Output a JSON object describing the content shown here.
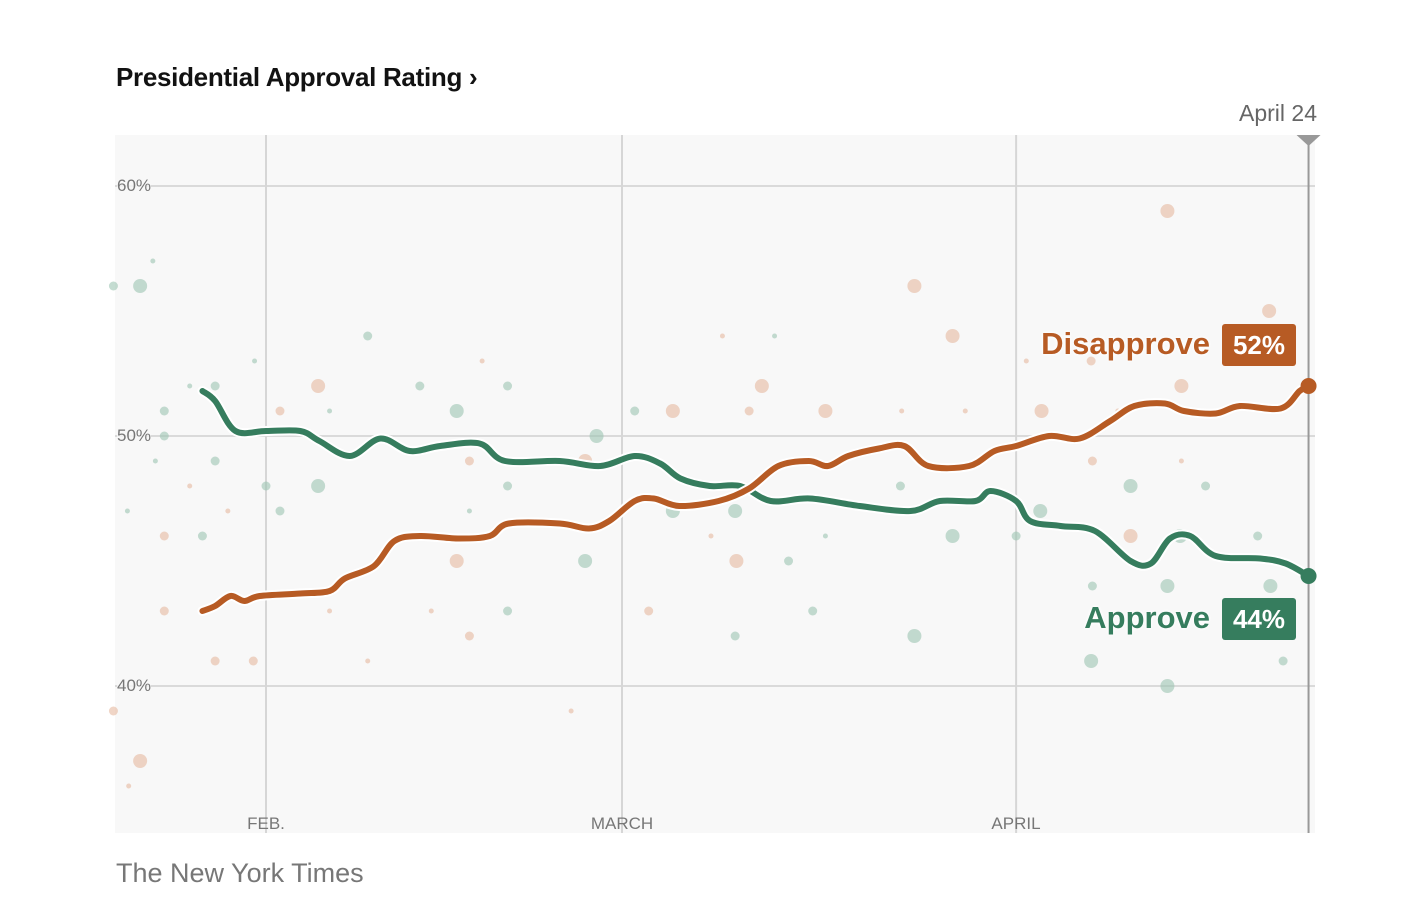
{
  "header": {
    "title": "Presidential Approval Rating ›",
    "current_date": "April 24"
  },
  "source": "The New York Times",
  "colors": {
    "approve": "#367d5e",
    "disapprove": "#b75b24",
    "approve_dot": "#9cc5b3",
    "disapprove_dot": "#e6b9a0",
    "background": "#f8f8f8"
  },
  "chart_data": {
    "type": "line",
    "title": "Presidential Approval Rating",
    "x_unit": "day of year",
    "xlim": [
      20,
      114.6
    ],
    "ylim": [
      35.9,
      63.9
    ],
    "yticks": [
      {
        "value": 60,
        "label": "60%"
      },
      {
        "value": 50,
        "label": "50%"
      },
      {
        "value": 40,
        "label": "40%"
      }
    ],
    "xticks": [
      {
        "value": 32,
        "label": "FEB."
      },
      {
        "value": 60,
        "label": "MARCH"
      },
      {
        "value": 91,
        "label": "APRIL"
      }
    ],
    "grid": true,
    "current_marker": {
      "x": 114,
      "label": "April 24"
    },
    "series": [
      {
        "name": "Approve",
        "final_label": "44%",
        "x": [
          27,
          28,
          29.6,
          32,
          34.7,
          36.2,
          38.6,
          41,
          43.3,
          45.7,
          48.8,
          50.8,
          55.1,
          58.3,
          61,
          63,
          64.6,
          66.9,
          69.3,
          71.7,
          74.8,
          78.7,
          82.7,
          85,
          87.8,
          89,
          91,
          92.1,
          94.5,
          97.2,
          100,
          101.6,
          103.1,
          104.7,
          106.7,
          110.2,
          112.2,
          114
        ],
        "y": [
          51.8,
          51.4,
          50.2,
          50.2,
          50.2,
          49.8,
          49.2,
          49.9,
          49.4,
          49.6,
          49.7,
          49.0,
          49.0,
          48.8,
          49.2,
          48.9,
          48.3,
          48.0,
          48.0,
          47.4,
          47.5,
          47.2,
          47.0,
          47.4,
          47.4,
          47.8,
          47.4,
          46.6,
          46.4,
          46.2,
          45.0,
          44.9,
          45.9,
          46.0,
          45.2,
          45.1,
          44.9,
          44.4
        ]
      },
      {
        "name": "Disapprove",
        "final_label": "52%",
        "x": [
          27,
          28,
          29.2,
          30.3,
          31.5,
          34.7,
          37,
          38.2,
          40.5,
          42.1,
          44.1,
          47.2,
          49.6,
          51.1,
          55.1,
          57.4,
          59,
          61,
          62.5,
          64.5,
          67.6,
          70,
          72.3,
          74.7,
          76.2,
          77.8,
          80.2,
          82.2,
          84.1,
          87.3,
          89.3,
          91,
          93.6,
          96,
          98.4,
          100.3,
          102.7,
          104.2,
          106.7,
          108.6,
          111.8,
          113.3,
          114
        ],
        "y": [
          43.0,
          43.2,
          43.6,
          43.4,
          43.6,
          43.7,
          43.8,
          44.3,
          44.8,
          45.8,
          46.0,
          45.9,
          46.0,
          46.5,
          46.5,
          46.3,
          46.6,
          47.4,
          47.5,
          47.2,
          47.4,
          47.9,
          48.8,
          49.0,
          48.8,
          49.2,
          49.5,
          49.6,
          48.8,
          48.8,
          49.4,
          49.6,
          50.0,
          49.9,
          50.6,
          51.2,
          51.3,
          51.0,
          50.9,
          51.2,
          51.1,
          51.8,
          52.0
        ]
      }
    ],
    "polls": {
      "approve": [
        [
          20,
          56,
          2
        ],
        [
          22.1,
          56,
          3
        ],
        [
          23.1,
          57,
          1
        ],
        [
          24,
          51,
          2
        ],
        [
          24,
          50,
          2
        ],
        [
          23.3,
          49,
          1
        ],
        [
          21.1,
          47,
          1
        ],
        [
          26,
          52,
          1
        ],
        [
          28,
          52,
          2
        ],
        [
          28,
          49,
          2
        ],
        [
          27,
          46,
          2
        ],
        [
          31.1,
          53,
          1
        ],
        [
          32,
          48,
          2
        ],
        [
          33.1,
          47,
          2
        ],
        [
          36.1,
          48,
          3
        ],
        [
          37,
          51,
          1
        ],
        [
          40,
          54,
          2
        ],
        [
          44.1,
          52,
          2
        ],
        [
          47,
          51,
          3
        ],
        [
          48,
          47,
          1
        ],
        [
          51,
          52,
          2
        ],
        [
          51,
          48,
          2
        ],
        [
          51,
          43,
          2
        ],
        [
          58,
          50,
          3
        ],
        [
          57.1,
          45,
          3
        ],
        [
          61,
          51,
          2
        ],
        [
          64,
          47,
          3
        ],
        [
          68.9,
          47,
          3
        ],
        [
          68.9,
          42,
          2
        ],
        [
          72,
          54,
          1
        ],
        [
          73.1,
          45,
          2
        ],
        [
          75,
          43,
          2
        ],
        [
          76,
          46,
          1
        ],
        [
          81.9,
          48,
          2
        ],
        [
          83,
          42,
          3
        ],
        [
          86,
          46,
          3
        ],
        [
          91,
          46,
          2
        ],
        [
          92.9,
          47,
          3
        ],
        [
          96.9,
          41,
          3
        ],
        [
          100,
          48,
          3
        ],
        [
          102.9,
          40,
          3
        ],
        [
          103.9,
          46,
          3
        ],
        [
          105.9,
          48,
          2
        ],
        [
          110,
          46,
          2
        ],
        [
          111,
          44,
          3
        ],
        [
          112,
          41,
          2
        ],
        [
          97,
          44,
          2
        ],
        [
          102.9,
          44,
          3
        ]
      ],
      "disapprove": [
        [
          102.9,
          59,
          3
        ],
        [
          110.9,
          55,
          3
        ],
        [
          83,
          56,
          3
        ],
        [
          86,
          54,
          3
        ],
        [
          67.9,
          54,
          1
        ],
        [
          36.1,
          52,
          3
        ],
        [
          33.1,
          51,
          2
        ],
        [
          24,
          46,
          2
        ],
        [
          22.1,
          37,
          3
        ],
        [
          21.2,
          36,
          1
        ],
        [
          20,
          39,
          2
        ],
        [
          24,
          43,
          2
        ],
        [
          28,
          41,
          2
        ],
        [
          31,
          41,
          2
        ],
        [
          47,
          45,
          3
        ],
        [
          48,
          49,
          2
        ],
        [
          49,
          53,
          1
        ],
        [
          48,
          42,
          2
        ],
        [
          57.1,
          49,
          3
        ],
        [
          64,
          51,
          3
        ],
        [
          71,
          52,
          3
        ],
        [
          76,
          51,
          3
        ],
        [
          69,
          45,
          3
        ],
        [
          62.1,
          43,
          2
        ],
        [
          93,
          51,
          3
        ],
        [
          97,
          49,
          2
        ],
        [
          100,
          46,
          3
        ],
        [
          104,
          52,
          3
        ],
        [
          96.9,
          53,
          2
        ],
        [
          104,
          49,
          1
        ],
        [
          91.8,
          53,
          1
        ],
        [
          87,
          51,
          1
        ],
        [
          82,
          51,
          1
        ],
        [
          70,
          51,
          2
        ],
        [
          67,
          46,
          1
        ],
        [
          56,
          39,
          1
        ],
        [
          40,
          41,
          1
        ],
        [
          37,
          43,
          1
        ],
        [
          45,
          43,
          1
        ],
        [
          26,
          48,
          1
        ],
        [
          29,
          47,
          1
        ],
        [
          108,
          53,
          2
        ],
        [
          99,
          51,
          1
        ]
      ]
    }
  }
}
